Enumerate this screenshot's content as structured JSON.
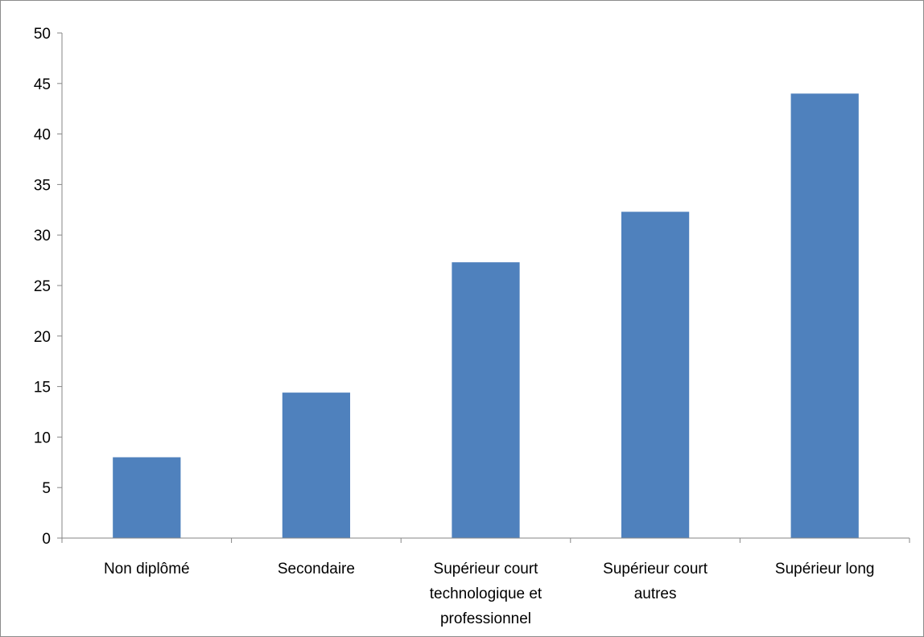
{
  "chart_data": {
    "type": "bar",
    "title": "",
    "xlabel": "",
    "ylabel": "",
    "categories": [
      [
        "Non diplômé"
      ],
      [
        "Secondaire"
      ],
      [
        "Supérieur court",
        "technologique et",
        "professionnel"
      ],
      [
        "Supérieur court",
        "autres"
      ],
      [
        "Supérieur long"
      ]
    ],
    "values": [
      8.0,
      14.4,
      27.3,
      32.3,
      44.0
    ],
    "ylim": [
      0,
      50
    ],
    "yticks": [
      0,
      5,
      10,
      15,
      20,
      25,
      30,
      35,
      40,
      45,
      50
    ],
    "grid": false,
    "legend": "none",
    "colors": {
      "bar": "#4F81BD",
      "axis": "#868686"
    }
  }
}
